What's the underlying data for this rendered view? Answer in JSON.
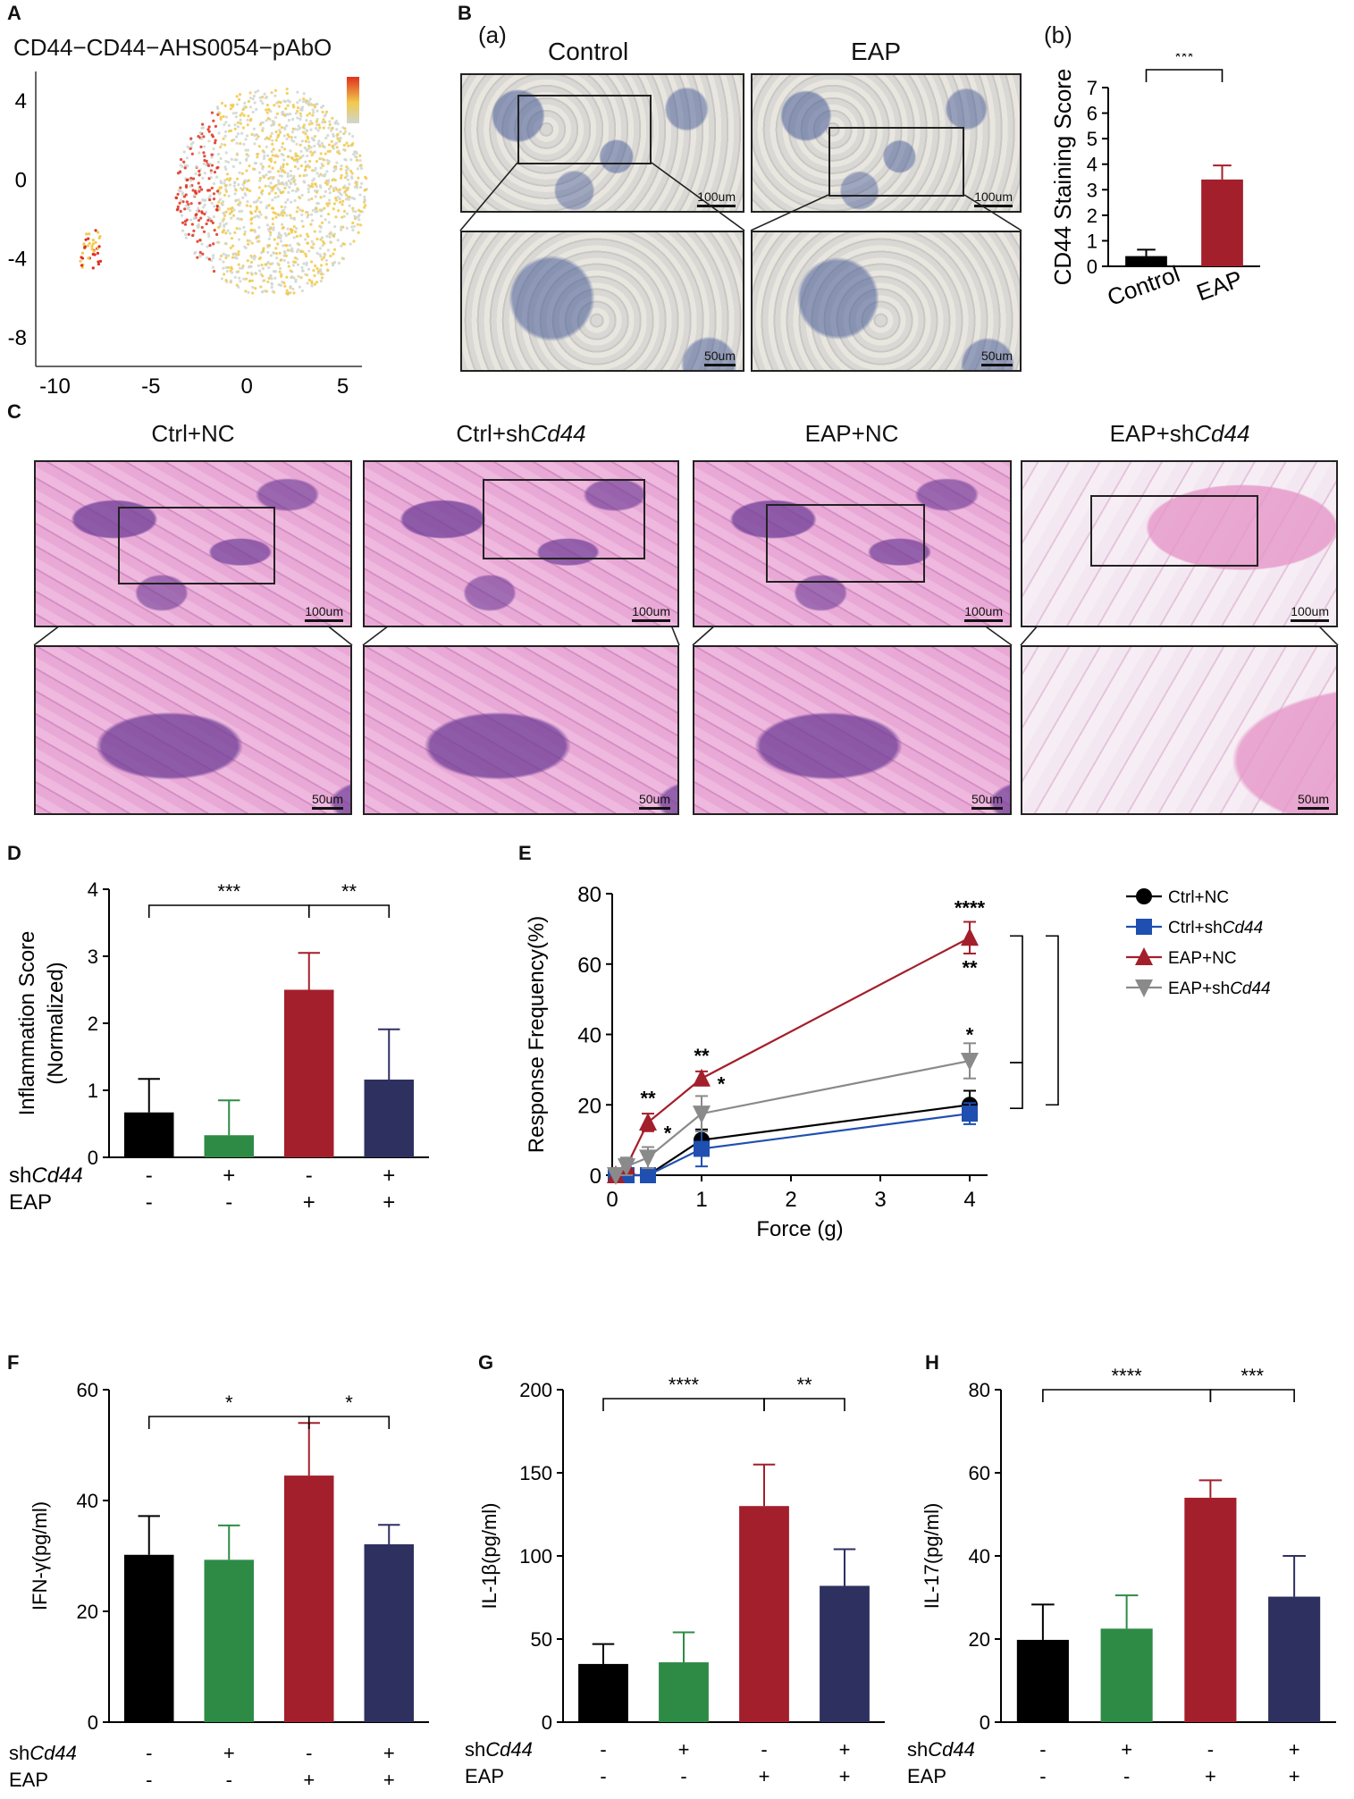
{
  "panels": {
    "A": "A",
    "B": "B",
    "C": "C",
    "D": "D",
    "E": "E",
    "F": "F",
    "G": "G",
    "H": "H",
    "Ba": "(a)",
    "Bb": "(b)"
  },
  "umap": {
    "title": "CD44−CD44−AHS0054−pAbO",
    "yticks": [
      "4",
      "0",
      "-4",
      "-8"
    ],
    "xticks": [
      "-10",
      "-5",
      "0",
      "5"
    ],
    "colors": {
      "high": "#e0301e",
      "mid": "#f2c94c",
      "low": "#cfd6cf"
    }
  },
  "ihc": {
    "control_label": "Control",
    "eap_label": "EAP",
    "scale_top": "100um",
    "scale_bottom": "50um"
  },
  "he": {
    "labels": [
      "Ctrl+NC",
      "Ctrl+sh",
      "EAP+NC",
      "EAP+sh"
    ],
    "italic_suffix": "Cd44",
    "scale_top": "100um",
    "scale_bottom": "50um"
  },
  "chart_data": [
    {
      "id": "Bb",
      "type": "bar",
      "ylabel": "CD44 Staining Score",
      "categories": [
        "Control",
        "EAP"
      ],
      "values": [
        0.4,
        3.4
      ],
      "errors": [
        0.25,
        0.55
      ],
      "colors": [
        "#000000",
        "#a31f2b"
      ],
      "ylim": [
        0,
        7
      ],
      "yticks": [
        "0",
        "1",
        "2",
        "3",
        "4",
        "5",
        "6",
        "7"
      ],
      "sig": [
        {
          "from": 0,
          "to": 1,
          "label": "***"
        }
      ]
    },
    {
      "id": "D",
      "type": "bar",
      "ylabel": "Inflammation Score",
      "ylabel2": "(Normalized)",
      "values": [
        0.67,
        0.33,
        2.5,
        1.16
      ],
      "errors": [
        0.5,
        0.52,
        0.55,
        0.75
      ],
      "colors": [
        "#000000",
        "#2e8b45",
        "#a31f2b",
        "#2e3060"
      ],
      "ylim": [
        0,
        4
      ],
      "yticks": [
        "0",
        "1",
        "2",
        "3",
        "4"
      ],
      "shCd44": [
        "-",
        "+",
        "-",
        "+"
      ],
      "EAP": [
        "-",
        "-",
        "+",
        "+"
      ],
      "sig": [
        {
          "from": 0,
          "to": 2,
          "label": "***"
        },
        {
          "from": 2,
          "to": 3,
          "label": "**"
        }
      ]
    },
    {
      "id": "E",
      "type": "line",
      "xlabel": "Force (g)",
      "ylabel": "Response Frequency(%)",
      "xlim": [
        0,
        4.2
      ],
      "ylim": [
        0,
        80
      ],
      "xticks": [
        "0",
        "1",
        "2",
        "3",
        "4"
      ],
      "yticks": [
        "0",
        "20",
        "40",
        "60",
        "80"
      ],
      "x": [
        0.04,
        0.16,
        0.4,
        1,
        4
      ],
      "series": [
        {
          "name": "Ctrl+NC",
          "values": [
            0,
            0,
            0,
            10,
            20
          ],
          "errors": [
            0,
            0,
            0,
            3,
            4
          ],
          "color": "#000000",
          "marker": "circle"
        },
        {
          "name": "Ctrl+sh",
          "values": [
            0,
            0,
            0,
            7.5,
            17.5
          ],
          "errors": [
            0,
            0,
            0,
            5,
            3
          ],
          "color": "#1f4fb0",
          "marker": "square"
        },
        {
          "name": "EAP+NC",
          "values": [
            0,
            2.5,
            15,
            27.5,
            67.5
          ],
          "errors": [
            0,
            2,
            2.5,
            2,
            4.5
          ],
          "color": "#a31f2b",
          "marker": "triangle"
        },
        {
          "name": "EAP+sh",
          "values": [
            0,
            2.5,
            5,
            17.5,
            32.5
          ],
          "errors": [
            0,
            2.5,
            3,
            5,
            5
          ],
          "color": "#8a8a8a",
          "marker": "triangle-down"
        }
      ],
      "annotations": [
        "**",
        "*",
        "**",
        "*",
        "****",
        "**",
        "*"
      ]
    },
    {
      "id": "F",
      "type": "bar",
      "ylabel": "IFN-γ(pg/ml)",
      "values": [
        30.2,
        29.3,
        44.5,
        32.1
      ],
      "errors": [
        7,
        6.2,
        9.5,
        3.5
      ],
      "colors": [
        "#000000",
        "#2e8b45",
        "#a31f2b",
        "#2e3060"
      ],
      "ylim": [
        0,
        60
      ],
      "yticks": [
        "0",
        "20",
        "40",
        "60"
      ],
      "shCd44": [
        "-",
        "+",
        "-",
        "+"
      ],
      "EAP": [
        "-",
        "-",
        "+",
        "+"
      ],
      "sig": [
        {
          "from": 0,
          "to": 2,
          "label": "*"
        },
        {
          "from": 2,
          "to": 3,
          "label": "*"
        }
      ]
    },
    {
      "id": "G",
      "type": "bar",
      "ylabel": "IL-1β(pg/ml)",
      "values": [
        35,
        36,
        130,
        82
      ],
      "errors": [
        12,
        18,
        25,
        22
      ],
      "colors": [
        "#000000",
        "#2e8b45",
        "#a31f2b",
        "#2e3060"
      ],
      "ylim": [
        0,
        200
      ],
      "yticks": [
        "0",
        "50",
        "100",
        "150",
        "200"
      ],
      "shCd44": [
        "-",
        "+",
        "-",
        "+"
      ],
      "EAP": [
        "-",
        "-",
        "+",
        "+"
      ],
      "sig": [
        {
          "from": 0,
          "to": 2,
          "label": "****"
        },
        {
          "from": 2,
          "to": 3,
          "label": "**"
        }
      ]
    },
    {
      "id": "H",
      "type": "bar",
      "ylabel": "IL-17(pg/ml)",
      "values": [
        19.8,
        22.5,
        54,
        30.2
      ],
      "errors": [
        8.5,
        8,
        4.2,
        9.8
      ],
      "colors": [
        "#000000",
        "#2e8b45",
        "#a31f2b",
        "#2e3060"
      ],
      "ylim": [
        0,
        80
      ],
      "yticks": [
        "0",
        "20",
        "40",
        "60",
        "80"
      ],
      "shCd44": [
        "-",
        "+",
        "-",
        "+"
      ],
      "EAP": [
        "-",
        "-",
        "+",
        "+"
      ],
      "sig": [
        {
          "from": 0,
          "to": 2,
          "label": "****"
        },
        {
          "from": 2,
          "to": 3,
          "label": "***"
        }
      ]
    }
  ],
  "row_labels": {
    "sh": "sh",
    "cd44": "Cd44",
    "eap": "EAP"
  }
}
